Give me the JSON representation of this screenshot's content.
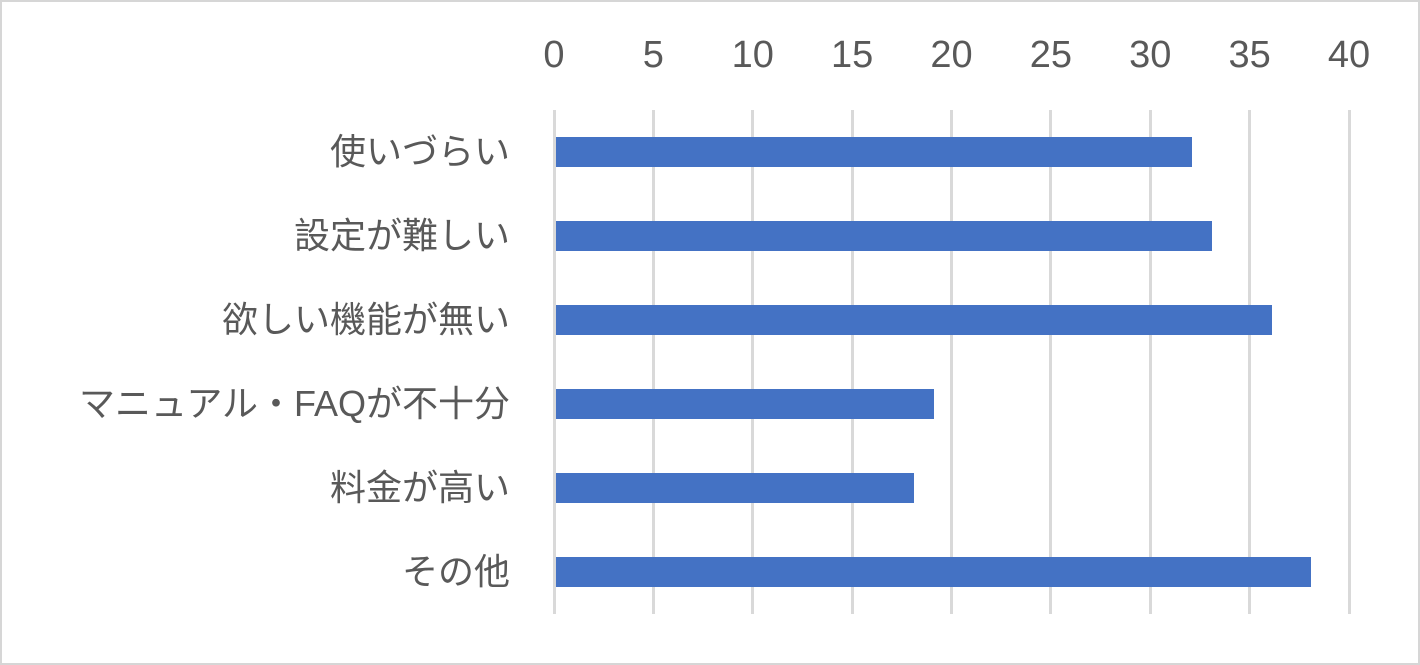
{
  "chart_data": {
    "type": "bar",
    "orientation": "horizontal",
    "title": "",
    "xlabel": "",
    "ylabel": "",
    "categories": [
      "使いづらい",
      "設定が難しい",
      "欲しい機能が無い",
      "マニュアル・FAQが不十分",
      "料金が高い",
      "その他"
    ],
    "values": [
      32,
      33,
      36,
      19,
      18,
      38
    ],
    "x_axis": {
      "position": "top",
      "min": 0,
      "max": 40,
      "tick_interval": 5,
      "ticks": [
        0,
        5,
        10,
        15,
        20,
        25,
        30,
        35,
        40
      ]
    },
    "grid": "vertical-major-gridlines",
    "legend": "none",
    "colors": {
      "bar": "#4472C4",
      "gridline": "#D9D9D9",
      "tick_label": "#595959",
      "category_label": "#595959",
      "frame_border": "#D6D6D6",
      "background": "#FFFFFF"
    }
  }
}
